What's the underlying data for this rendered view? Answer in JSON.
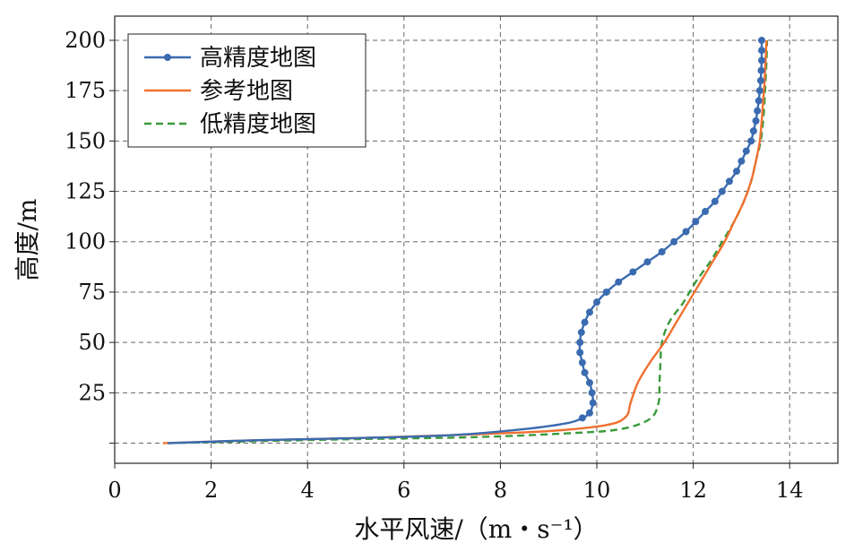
{
  "chart_data": {
    "type": "line",
    "xlabel": "水平风速/（m・s⁻¹）",
    "ylabel": "高度/m",
    "xlim": [
      0,
      15
    ],
    "ylim": [
      -10,
      212
    ],
    "x_ticks": [
      0,
      2,
      4,
      6,
      8,
      10,
      12,
      14
    ],
    "x_tick_labels": [
      "0",
      "2",
      "4",
      "6",
      "8",
      "10",
      "12",
      "14"
    ],
    "y_ticks": [
      0,
      25,
      50,
      75,
      100,
      125,
      150,
      175,
      200
    ],
    "y_tick_labels": [
      "",
      "25",
      "50",
      "75",
      "100",
      "125",
      "150",
      "175",
      "200"
    ],
    "grid": true,
    "legend_position": "top-left",
    "series": [
      {
        "name": "高精度地图",
        "color": "#3a6bb0",
        "style": "solid-markers",
        "points": [
          [
            1.1,
            0
          ],
          [
            3.0,
            1.5
          ],
          [
            5.0,
            2.5
          ],
          [
            7.0,
            4
          ],
          [
            8.5,
            7
          ],
          [
            9.4,
            10
          ],
          [
            9.7,
            12.5
          ],
          [
            9.85,
            15
          ],
          [
            9.92,
            20
          ],
          [
            9.9,
            25
          ],
          [
            9.85,
            30
          ],
          [
            9.75,
            35
          ],
          [
            9.7,
            40
          ],
          [
            9.65,
            45
          ],
          [
            9.65,
            50
          ],
          [
            9.68,
            55
          ],
          [
            9.75,
            60
          ],
          [
            9.85,
            65
          ],
          [
            10.0,
            70
          ],
          [
            10.2,
            75
          ],
          [
            10.45,
            80
          ],
          [
            10.75,
            85
          ],
          [
            11.05,
            90
          ],
          [
            11.35,
            95
          ],
          [
            11.6,
            100
          ],
          [
            11.85,
            105
          ],
          [
            12.05,
            110
          ],
          [
            12.25,
            115
          ],
          [
            12.45,
            120
          ],
          [
            12.6,
            125
          ],
          [
            12.75,
            130
          ],
          [
            12.9,
            135
          ],
          [
            13.0,
            140
          ],
          [
            13.1,
            145
          ],
          [
            13.2,
            150
          ],
          [
            13.25,
            155
          ],
          [
            13.3,
            160
          ],
          [
            13.33,
            165
          ],
          [
            13.36,
            170
          ],
          [
            13.38,
            175
          ],
          [
            13.4,
            180
          ],
          [
            13.41,
            185
          ],
          [
            13.42,
            190
          ],
          [
            13.42,
            195
          ],
          [
            13.42,
            200
          ]
        ]
      },
      {
        "name": "参考地图",
        "color": "#f07030",
        "style": "solid",
        "points": [
          [
            1.0,
            0
          ],
          [
            3.0,
            1.5
          ],
          [
            5.0,
            2.5
          ],
          [
            7.0,
            4
          ],
          [
            9.0,
            6
          ],
          [
            10.2,
            9
          ],
          [
            10.6,
            13
          ],
          [
            10.7,
            20
          ],
          [
            10.85,
            30
          ],
          [
            11.1,
            40
          ],
          [
            11.4,
            50
          ],
          [
            11.65,
            60
          ],
          [
            11.9,
            70
          ],
          [
            12.15,
            80
          ],
          [
            12.4,
            90
          ],
          [
            12.65,
            100
          ],
          [
            12.85,
            110
          ],
          [
            13.05,
            120
          ],
          [
            13.2,
            130
          ],
          [
            13.3,
            140
          ],
          [
            13.38,
            150
          ],
          [
            13.42,
            160
          ],
          [
            13.45,
            170
          ],
          [
            13.48,
            180
          ],
          [
            13.5,
            190
          ],
          [
            13.52,
            200
          ]
        ]
      },
      {
        "name": "低精度地图",
        "color": "#3a9a3a",
        "style": "dashed",
        "points": [
          [
            1.1,
            0
          ],
          [
            3.0,
            1
          ],
          [
            5.0,
            2
          ],
          [
            7.5,
            3
          ],
          [
            9.5,
            5
          ],
          [
            10.5,
            7
          ],
          [
            11.1,
            12
          ],
          [
            11.28,
            20
          ],
          [
            11.3,
            30
          ],
          [
            11.32,
            40
          ],
          [
            11.35,
            50
          ],
          [
            11.5,
            60
          ],
          [
            11.8,
            70
          ],
          [
            12.05,
            80
          ],
          [
            12.35,
            90
          ],
          [
            12.6,
            100
          ],
          [
            12.85,
            110
          ],
          [
            13.05,
            120
          ],
          [
            13.2,
            130
          ],
          [
            13.3,
            140
          ],
          [
            13.4,
            150
          ],
          [
            13.45,
            160
          ],
          [
            13.48,
            170
          ],
          [
            13.5,
            180
          ],
          [
            13.52,
            190
          ],
          [
            13.53,
            200
          ]
        ]
      }
    ]
  }
}
